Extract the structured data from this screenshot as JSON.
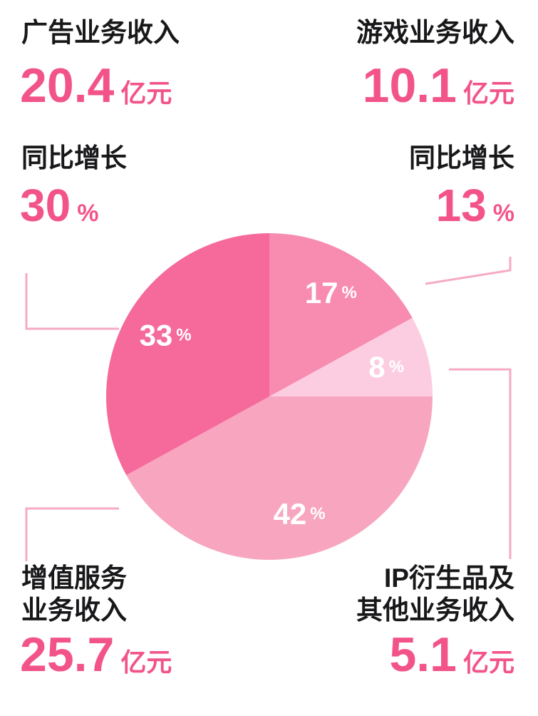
{
  "colors": {
    "accent_pink": "#f2548a",
    "text_dark": "#18181a",
    "connector": "#f6aac5",
    "pie_label": "#ffffff"
  },
  "stats": {
    "ad": {
      "title": "广告业务收入",
      "value": "20.4",
      "unit": "亿元",
      "growth_label": "同比增长",
      "growth_value": "30",
      "growth_unit": "%"
    },
    "game": {
      "title": "游戏业务收入",
      "value": "10.1",
      "unit": "亿元",
      "growth_label": "同比增长",
      "growth_value": "13",
      "growth_unit": "%"
    },
    "vas": {
      "title_line1": "增值服务",
      "title_line2": "业务收入",
      "value": "25.7",
      "unit": "亿元"
    },
    "ip": {
      "title_line1": "IP衍生品及",
      "title_line2": "其他业务收入",
      "value": "5.1",
      "unit": "亿元"
    }
  },
  "chart_data": {
    "type": "pie",
    "title": "",
    "start_angle_deg": 0,
    "direction": "clockwise",
    "percent_suffix": "%",
    "legend": "none",
    "slices": [
      {
        "name": "游戏业务收入",
        "percent": 17,
        "value_yi_yuan": 10.1,
        "color": "#f88bb0"
      },
      {
        "name": "IP衍生品及其他业务收入",
        "percent": 8,
        "value_yi_yuan": 5.1,
        "color": "#fccde0"
      },
      {
        "name": "增值服务业务收入",
        "percent": 42,
        "value_yi_yuan": 25.7,
        "color": "#f8a5c0"
      },
      {
        "name": "广告业务收入",
        "percent": 33,
        "value_yi_yuan": 20.4,
        "color": "#f56a9b"
      }
    ],
    "annotations": {
      "广告业务收入_yoy_growth_percent": 30,
      "游戏业务收入_yoy_growth_percent": 13
    },
    "label_color": "#ffffff"
  }
}
